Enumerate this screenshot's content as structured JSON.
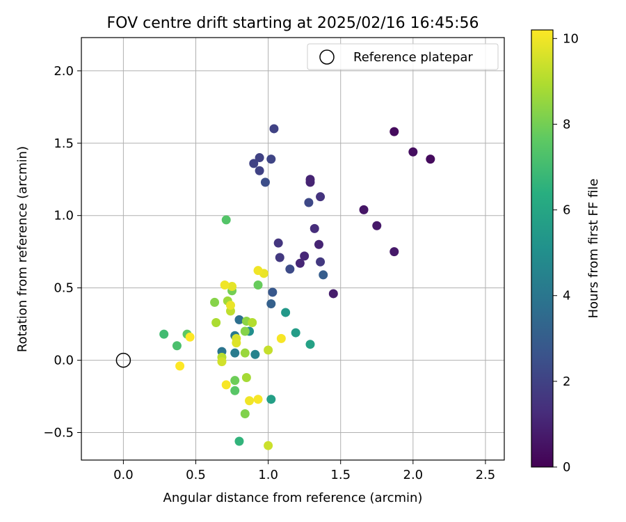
{
  "chart_data": {
    "type": "scatter",
    "title": "FOV centre drift starting at 2025/02/16 16:45:56",
    "xlabel": "Angular distance from reference (arcmin)",
    "ylabel": "Rotation from reference (arcmin)",
    "xlim": [
      -0.29,
      2.63
    ],
    "ylim": [
      -0.69,
      2.23
    ],
    "xticks": [
      0.0,
      0.5,
      1.0,
      1.5,
      2.0,
      2.5
    ],
    "xtick_labels": [
      "0.0",
      "0.5",
      "1.0",
      "1.5",
      "2.0",
      "2.5"
    ],
    "yticks": [
      -0.5,
      0.0,
      0.5,
      1.0,
      1.5,
      2.0
    ],
    "ytick_labels": [
      "−0.5",
      "0.0",
      "0.5",
      "1.0",
      "1.5",
      "2.0"
    ],
    "grid": true,
    "legend": {
      "position": "top-right",
      "entries": [
        {
          "label": "Reference platepar",
          "marker": "open-circle"
        }
      ]
    },
    "reference_point": {
      "x": 0.0,
      "y": 0.0
    },
    "colorbar": {
      "label": "Hours from first FF file",
      "colormap": "viridis",
      "range": [
        0,
        10.2
      ],
      "ticks": [
        0,
        2,
        4,
        6,
        8,
        10
      ],
      "tick_labels": [
        "0",
        "2",
        "4",
        "6",
        "8",
        "10"
      ]
    },
    "points": [
      {
        "x": 1.87,
        "y": 1.58,
        "h": 0.3
      },
      {
        "x": 2.0,
        "y": 1.44,
        "h": 0.4
      },
      {
        "x": 2.12,
        "y": 1.39,
        "h": 0.3
      },
      {
        "x": 1.66,
        "y": 1.04,
        "h": 0.6
      },
      {
        "x": 1.75,
        "y": 0.93,
        "h": 0.7
      },
      {
        "x": 1.87,
        "y": 0.75,
        "h": 0.7
      },
      {
        "x": 1.45,
        "y": 0.46,
        "h": 0.8
      },
      {
        "x": 1.29,
        "y": 1.25,
        "h": 1.0
      },
      {
        "x": 1.29,
        "y": 1.23,
        "h": 1.0
      },
      {
        "x": 1.35,
        "y": 0.8,
        "h": 1.0
      },
      {
        "x": 1.25,
        "y": 0.72,
        "h": 1.1
      },
      {
        "x": 1.22,
        "y": 0.67,
        "h": 1.1
      },
      {
        "x": 1.32,
        "y": 0.91,
        "h": 1.3
      },
      {
        "x": 1.36,
        "y": 1.13,
        "h": 1.5
      },
      {
        "x": 1.07,
        "y": 0.81,
        "h": 1.6
      },
      {
        "x": 1.08,
        "y": 0.71,
        "h": 1.7
      },
      {
        "x": 1.36,
        "y": 0.68,
        "h": 1.7
      },
      {
        "x": 1.04,
        "y": 1.6,
        "h": 2.0
      },
      {
        "x": 0.9,
        "y": 1.36,
        "h": 2.0
      },
      {
        "x": 0.94,
        "y": 1.4,
        "h": 2.0
      },
      {
        "x": 0.94,
        "y": 1.31,
        "h": 2.0
      },
      {
        "x": 1.02,
        "y": 1.39,
        "h": 2.1
      },
      {
        "x": 1.28,
        "y": 1.09,
        "h": 2.2
      },
      {
        "x": 1.15,
        "y": 0.63,
        "h": 2.3
      },
      {
        "x": 0.98,
        "y": 1.23,
        "h": 2.4
      },
      {
        "x": 1.03,
        "y": 0.47,
        "h": 2.8
      },
      {
        "x": 1.38,
        "y": 0.59,
        "h": 3.0
      },
      {
        "x": 1.02,
        "y": 0.39,
        "h": 3.1
      },
      {
        "x": 0.8,
        "y": 0.28,
        "h": 3.7
      },
      {
        "x": 0.68,
        "y": 0.06,
        "h": 3.9
      },
      {
        "x": 0.77,
        "y": 0.17,
        "h": 4.1
      },
      {
        "x": 0.77,
        "y": 0.05,
        "h": 4.2
      },
      {
        "x": 0.91,
        "y": 0.04,
        "h": 4.5
      },
      {
        "x": 0.87,
        "y": 0.2,
        "h": 5.0
      },
      {
        "x": 1.12,
        "y": 0.33,
        "h": 5.4
      },
      {
        "x": 1.19,
        "y": 0.19,
        "h": 5.6
      },
      {
        "x": 1.02,
        "y": -0.27,
        "h": 5.7
      },
      {
        "x": 1.29,
        "y": 0.11,
        "h": 5.8
      },
      {
        "x": 0.8,
        "y": -0.56,
        "h": 6.6
      },
      {
        "x": 0.28,
        "y": 0.18,
        "h": 7.0
      },
      {
        "x": 0.37,
        "y": 0.1,
        "h": 7.2
      },
      {
        "x": 0.71,
        "y": 0.97,
        "h": 7.4
      },
      {
        "x": 0.77,
        "y": -0.21,
        "h": 7.5
      },
      {
        "x": 0.44,
        "y": 0.18,
        "h": 7.6
      },
      {
        "x": 0.93,
        "y": 0.52,
        "h": 7.8
      },
      {
        "x": 0.77,
        "y": -0.14,
        "h": 7.9
      },
      {
        "x": 0.75,
        "y": 0.48,
        "h": 8.0
      },
      {
        "x": 0.84,
        "y": -0.37,
        "h": 8.2
      },
      {
        "x": 0.84,
        "y": 0.2,
        "h": 8.3
      },
      {
        "x": 0.63,
        "y": 0.4,
        "h": 8.3
      },
      {
        "x": 0.85,
        "y": 0.27,
        "h": 8.4
      },
      {
        "x": 0.84,
        "y": 0.05,
        "h": 8.6
      },
      {
        "x": 0.72,
        "y": 0.41,
        "h": 8.7
      },
      {
        "x": 0.85,
        "y": -0.12,
        "h": 8.8
      },
      {
        "x": 0.64,
        "y": 0.26,
        "h": 8.9
      },
      {
        "x": 0.89,
        "y": 0.26,
        "h": 9.0
      },
      {
        "x": 0.68,
        "y": 0.02,
        "h": 9.1
      },
      {
        "x": 0.74,
        "y": 0.34,
        "h": 9.2
      },
      {
        "x": 1.0,
        "y": 0.07,
        "h": 9.3
      },
      {
        "x": 1.0,
        "y": -0.59,
        "h": 9.4
      },
      {
        "x": 0.68,
        "y": -0.01,
        "h": 9.5
      },
      {
        "x": 0.78,
        "y": 0.15,
        "h": 9.6
      },
      {
        "x": 0.78,
        "y": 0.12,
        "h": 9.7
      },
      {
        "x": 0.75,
        "y": 0.51,
        "h": 9.8
      },
      {
        "x": 0.74,
        "y": 0.38,
        "h": 9.9
      },
      {
        "x": 0.97,
        "y": 0.6,
        "h": 9.9
      },
      {
        "x": 0.93,
        "y": 0.62,
        "h": 10.0
      },
      {
        "x": 0.7,
        "y": 0.52,
        "h": 10.0
      },
      {
        "x": 0.87,
        "y": -0.28,
        "h": 10.0
      },
      {
        "x": 0.93,
        "y": -0.27,
        "h": 10.1
      },
      {
        "x": 1.09,
        "y": 0.15,
        "h": 10.1
      },
      {
        "x": 0.71,
        "y": -0.17,
        "h": 10.1
      },
      {
        "x": 0.39,
        "y": -0.04,
        "h": 10.2
      },
      {
        "x": 0.46,
        "y": 0.16,
        "h": 10.2
      }
    ]
  }
}
